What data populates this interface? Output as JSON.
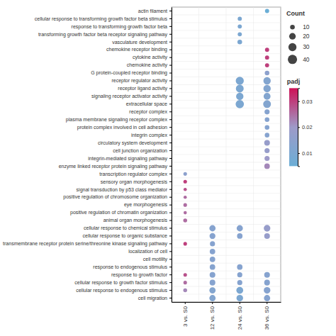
{
  "chart_data": {
    "type": "dot",
    "categories": [
      "3 vs. S0",
      "12 vs. S0",
      "24 vs. S0",
      "36 vs. S0"
    ],
    "y_categories": [
      "actin filament",
      "cellular response to transforming growth factor beta stimulus",
      "response to transforming growth factor beta",
      "transforming growth factor beta receptor signaling pathway",
      "vasculature development",
      "chemokine receptor binding",
      "cytokine activity",
      "chemokine activity",
      "G protein-coupled receptor binding",
      "receptor regulator activity",
      "receptor ligand activity",
      "signaling receptor activator activity",
      "extracellular space",
      "receptor complex",
      "plasma membrane signaling receptor complex",
      "protein complex involved in cell adhesion",
      "integrin complex",
      "circulatory system development",
      "cell junction organization",
      "integrin-mediated signaling pathway",
      "enzyme linked receptor protein signaling pathway",
      "transcription regulator complex",
      "sensory organ morphogenesis",
      "signal transduction by p53 class mediator",
      "positive regulation of chromosome organization",
      "eye morphogenesis",
      "positive regulation of chromatin organization",
      "animal organ morphogenesis",
      "cellular response to chemical stimulus",
      "cellular response to organic substance",
      "transmembrane receptor protein serine/threonine kinase signaling pathway",
      "localization of cell",
      "cell motility",
      "response to endogenous stimulus",
      "response to growth factor",
      "cellular response to growth factor stimulus",
      "cellular response to endogenous stimulus",
      "cell migration"
    ],
    "x": [
      "36 vs. S0",
      "24 vs. S0",
      "24 vs. S0",
      "24 vs. S0",
      "24 vs. S0",
      "36 vs. S0",
      "36 vs. S0",
      "36 vs. S0",
      "36 vs. S0",
      "24 vs. S0",
      "36 vs. S0",
      "24 vs. S0",
      "36 vs. S0",
      "24 vs. S0",
      "36 vs. S0",
      "24 vs. S0",
      "36 vs. S0",
      "36 vs. S0",
      "36 vs. S0",
      "36 vs. S0",
      "36 vs. S0",
      "36 vs. S0",
      "36 vs. S0",
      "36 vs. S0",
      "36 vs. S0",
      "3 vs. S0",
      "3 vs. S0",
      "3 vs. S0",
      "3 vs. S0",
      "3 vs. S0",
      "3 vs. S0",
      "3 vs. S0",
      "12 vs. S0",
      "24 vs. S0",
      "36 vs. S0",
      "12 vs. S0",
      "24 vs. S0",
      "36 vs. S0",
      "3 vs. S0",
      "12 vs. S0",
      "12 vs. S0",
      "12 vs. S0",
      "12 vs. S0",
      "24 vs. S0",
      "3 vs. S0",
      "12 vs. S0",
      "24 vs. S0",
      "36 vs. S0",
      "3 vs. S0",
      "12 vs. S0",
      "24 vs. S0",
      "36 vs. S0",
      "3 vs. S0",
      "12 vs. S0",
      "24 vs. S0",
      "36 vs. S0",
      "12 vs. S0",
      "24 vs. S0",
      "36 vs. S0"
    ],
    "y": [
      "actin filament",
      "cellular response to transforming growth factor beta stimulus",
      "response to transforming growth factor beta",
      "transforming growth factor beta receptor signaling pathway",
      "vasculature development",
      "chemokine receptor binding",
      "cytokine activity",
      "chemokine activity",
      "G protein-coupled receptor binding",
      "receptor regulator activity",
      "receptor regulator activity",
      "receptor ligand activity",
      "receptor ligand activity",
      "signaling receptor activator activity",
      "signaling receptor activator activity",
      "extracellular space",
      "extracellular space",
      "receptor complex",
      "plasma membrane signaling receptor complex",
      "protein complex involved in cell adhesion",
      "integrin complex",
      "circulatory system development",
      "cell junction organization",
      "integrin-mediated signaling pathway",
      "enzyme linked receptor protein signaling pathway",
      "transcription regulator complex",
      "sensory organ morphogenesis",
      "signal transduction by p53 class mediator",
      "positive regulation of chromosome organization",
      "eye morphogenesis",
      "positive regulation of chromatin organization",
      "animal organ morphogenesis",
      "cellular response to chemical stimulus",
      "cellular response to chemical stimulus",
      "cellular response to chemical stimulus",
      "cellular response to organic substance",
      "cellular response to organic substance",
      "cellular response to organic substance",
      "transmembrane receptor protein serine/threonine kinase signaling pathway",
      "transmembrane receptor protein serine/threonine kinase signaling pathway",
      "localization of cell",
      "cell motility",
      "response to endogenous stimulus",
      "response to endogenous stimulus",
      "response to growth factor",
      "response to growth factor",
      "response to growth factor",
      "response to growth factor",
      "cellular response to growth factor stimulus",
      "cellular response to growth factor stimulus",
      "cellular response to growth factor stimulus",
      "cellular response to growth factor stimulus",
      "cellular response to endogenous stimulus",
      "cellular response to endogenous stimulus",
      "cellular response to endogenous stimulus",
      "cellular response to endogenous stimulus",
      "cell migration",
      "cell migration",
      "cell migration"
    ],
    "size": [
      8,
      8,
      8,
      8,
      10,
      8,
      8,
      8,
      10,
      30,
      25,
      28,
      25,
      25,
      22,
      32,
      28,
      12,
      10,
      10,
      10,
      15,
      12,
      12,
      14,
      6,
      6,
      5,
      5,
      6,
      5,
      7,
      18,
      18,
      20,
      16,
      14,
      15,
      6,
      12,
      14,
      14,
      14,
      14,
      6,
      15,
      12,
      15,
      6,
      15,
      12,
      15,
      7,
      18,
      22,
      20,
      18,
      20,
      18
    ],
    "color_values": [
      0.005,
      0.01,
      0.01,
      0.01,
      0.01,
      0.03,
      0.03,
      0.03,
      0.015,
      0.01,
      0.012,
      0.01,
      0.012,
      0.01,
      0.012,
      0.01,
      0.012,
      0.013,
      0.013,
      0.013,
      0.013,
      0.018,
      0.018,
      0.02,
      0.022,
      0.015,
      0.03,
      0.028,
      0.025,
      0.025,
      0.025,
      0.025,
      0.013,
      0.013,
      0.018,
      0.013,
      0.013,
      0.018,
      0.03,
      0.013,
      0.013,
      0.013,
      0.013,
      0.013,
      0.028,
      0.013,
      0.013,
      0.013,
      0.025,
      0.013,
      0.013,
      0.013,
      0.022,
      0.012,
      0.01,
      0.013,
      0.012,
      0.01,
      0.013
    ],
    "size_legend": {
      "title": "Count",
      "values": [
        10,
        20,
        30,
        40
      ]
    },
    "colorbar": {
      "title": "padj",
      "range": [
        0.005,
        0.035
      ],
      "ticks": [
        0.01,
        0.02,
        0.03
      ],
      "colormap": [
        "#6baed6",
        "#9e9ac8",
        "#ce1256"
      ]
    },
    "grid": true
  }
}
